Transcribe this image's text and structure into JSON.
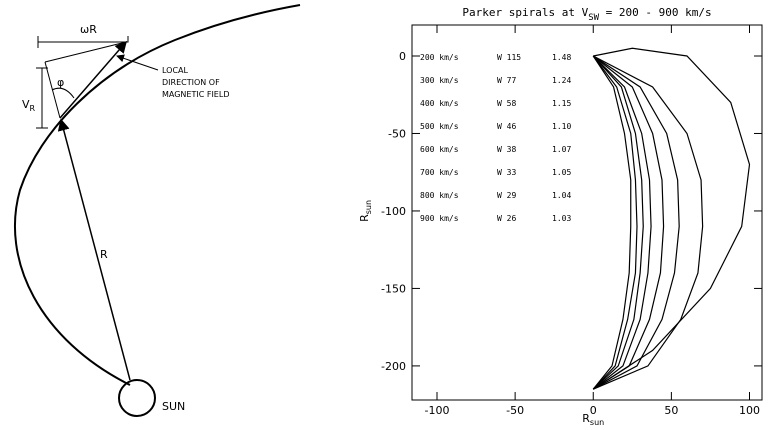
{
  "diagram": {
    "omega_r": "ωR",
    "phi": "φ",
    "v_r": [
      "V",
      "R"
    ],
    "field_note": [
      "LOCAL",
      "DIRECTION OF",
      "MAGNETIC FIELD"
    ],
    "radius": "R",
    "sun": "SUN"
  },
  "chart_data": {
    "type": "line",
    "title": [
      "Parker spirals at V",
      "SW",
      " = 200 - 900 km/s"
    ],
    "xlabel": [
      "R",
      "sun"
    ],
    "ylabel": [
      "R",
      "sun"
    ],
    "xlim": [
      -116,
      108
    ],
    "ylim": [
      -222,
      20
    ],
    "xticks": [
      -100,
      -50,
      0,
      50,
      100
    ],
    "yticks": [
      0,
      -50,
      -100,
      -150,
      -200
    ],
    "color": "#000000",
    "annotations": [
      [
        "W 115",
        "1.48"
      ],
      [
        "W 77",
        "1.24"
      ],
      [
        "W 58",
        "1.15"
      ],
      [
        "W 46",
        "1.10"
      ],
      [
        "W 38",
        "1.07"
      ],
      [
        "W 33",
        "1.05"
      ],
      [
        "W 29",
        "1.04"
      ],
      [
        "W 26",
        "1.03"
      ]
    ],
    "series": [
      {
        "name": "200 km/s",
        "x": [
          0,
          25,
          60,
          88,
          100,
          95,
          75,
          38,
          0
        ],
        "values": [
          0,
          5,
          0,
          -30,
          -70,
          -110,
          -150,
          -190,
          -215
        ]
      },
      {
        "name": "300 km/s",
        "x": [
          0,
          38,
          60,
          69,
          70,
          67,
          56,
          35,
          0
        ],
        "values": [
          0,
          -20,
          -50,
          -80,
          -110,
          -140,
          -170,
          -200,
          -215
        ]
      },
      {
        "name": "400 km/s",
        "x": [
          0,
          30,
          47,
          54,
          55,
          52,
          44,
          28,
          0
        ],
        "values": [
          0,
          -20,
          -50,
          -80,
          -110,
          -140,
          -170,
          -200,
          -215
        ]
      },
      {
        "name": "500 km/s",
        "x": [
          0,
          25,
          38,
          44,
          45,
          43,
          36,
          23,
          0
        ],
        "values": [
          0,
          -20,
          -50,
          -80,
          -110,
          -140,
          -170,
          -200,
          -215
        ]
      },
      {
        "name": "600 km/s",
        "x": [
          0,
          20,
          31,
          36,
          37,
          35,
          30,
          19,
          0
        ],
        "values": [
          0,
          -20,
          -50,
          -80,
          -110,
          -140,
          -170,
          -200,
          -215
        ]
      },
      {
        "name": "700 km/s",
        "x": [
          0,
          18,
          27,
          31,
          32,
          30,
          26,
          16,
          0
        ],
        "values": [
          0,
          -20,
          -50,
          -80,
          -110,
          -140,
          -170,
          -200,
          -215
        ]
      },
      {
        "name": "800 km/s",
        "x": [
          0,
          15,
          24,
          27,
          28,
          27,
          22,
          14,
          0
        ],
        "values": [
          0,
          -20,
          -50,
          -80,
          -110,
          -140,
          -170,
          -200,
          -215
        ]
      },
      {
        "name": "900 km/s",
        "x": [
          0,
          13,
          20,
          24,
          24,
          23,
          19,
          12,
          0
        ],
        "values": [
          0,
          -20,
          -50,
          -80,
          -110,
          -140,
          -170,
          -200,
          -215
        ]
      }
    ]
  }
}
